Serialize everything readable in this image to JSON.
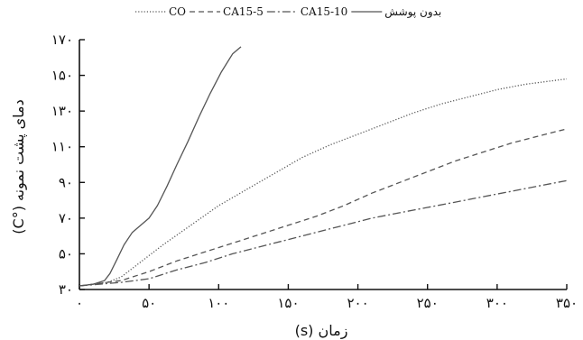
{
  "chart_data": {
    "type": "line",
    "title": "",
    "xlabel": "زمان (s)",
    "ylabel": "دمای پشت نمونه (°C)",
    "xlim": [
      0,
      350
    ],
    "ylim": [
      30,
      170
    ],
    "x_ticks": [
      0,
      50,
      100,
      150,
      200,
      250,
      300,
      350
    ],
    "x_tick_labels": [
      "۰",
      "۵۰",
      "۱۰۰",
      "۱۵۰",
      "۲۰۰",
      "۲۵۰",
      "۳۰۰",
      "۳۵۰"
    ],
    "y_ticks": [
      30,
      50,
      70,
      90,
      110,
      130,
      150,
      170
    ],
    "y_tick_labels": [
      "۳۰",
      "۵۰",
      "۷۰",
      "۹۰",
      "۱۱۰",
      "۱۳۰",
      "۱۵۰",
      "۱۷۰"
    ],
    "grid": false,
    "legend_position": "top",
    "series": [
      {
        "name": "بدون پوشش",
        "style": "solid",
        "color": "#555555",
        "points": [
          [
            0,
            32
          ],
          [
            10,
            33
          ],
          [
            18,
            35
          ],
          [
            22,
            39
          ],
          [
            27,
            47
          ],
          [
            32,
            55
          ],
          [
            38,
            62
          ],
          [
            44,
            66
          ],
          [
            50,
            70
          ],
          [
            56,
            77
          ],
          [
            63,
            88
          ],
          [
            70,
            100
          ],
          [
            78,
            113
          ],
          [
            86,
            127
          ],
          [
            94,
            140
          ],
          [
            102,
            152
          ],
          [
            110,
            162
          ],
          [
            116,
            166
          ]
        ]
      },
      {
        "name": "CO",
        "style": "dotted",
        "color": "#555555",
        "points": [
          [
            0,
            32
          ],
          [
            20,
            34
          ],
          [
            30,
            37
          ],
          [
            40,
            43
          ],
          [
            50,
            49
          ],
          [
            60,
            55
          ],
          [
            80,
            66
          ],
          [
            100,
            77
          ],
          [
            120,
            86
          ],
          [
            140,
            95
          ],
          [
            160,
            104
          ],
          [
            180,
            111
          ],
          [
            200,
            117
          ],
          [
            220,
            123
          ],
          [
            240,
            129
          ],
          [
            260,
            134
          ],
          [
            280,
            138
          ],
          [
            300,
            142
          ],
          [
            320,
            145
          ],
          [
            350,
            148
          ]
        ]
      },
      {
        "name": "CA15-5",
        "style": "dashed",
        "color": "#555555",
        "points": [
          [
            0,
            32
          ],
          [
            30,
            35
          ],
          [
            50,
            40
          ],
          [
            70,
            46
          ],
          [
            90,
            51
          ],
          [
            110,
            56
          ],
          [
            130,
            61
          ],
          [
            150,
            66
          ],
          [
            170,
            71
          ],
          [
            190,
            77
          ],
          [
            210,
            84
          ],
          [
            230,
            90
          ],
          [
            250,
            96
          ],
          [
            270,
            102
          ],
          [
            290,
            107
          ],
          [
            310,
            112
          ],
          [
            330,
            116
          ],
          [
            350,
            120
          ]
        ]
      },
      {
        "name": "CA15-10",
        "style": "dashdot",
        "color": "#555555",
        "points": [
          [
            0,
            32
          ],
          [
            30,
            34
          ],
          [
            50,
            36
          ],
          [
            70,
            41
          ],
          [
            90,
            45
          ],
          [
            110,
            50
          ],
          [
            130,
            54
          ],
          [
            150,
            58
          ],
          [
            170,
            62
          ],
          [
            190,
            66
          ],
          [
            210,
            70
          ],
          [
            230,
            73
          ],
          [
            250,
            76
          ],
          [
            270,
            79
          ],
          [
            290,
            82
          ],
          [
            310,
            85
          ],
          [
            330,
            88
          ],
          [
            350,
            91
          ]
        ]
      }
    ]
  }
}
